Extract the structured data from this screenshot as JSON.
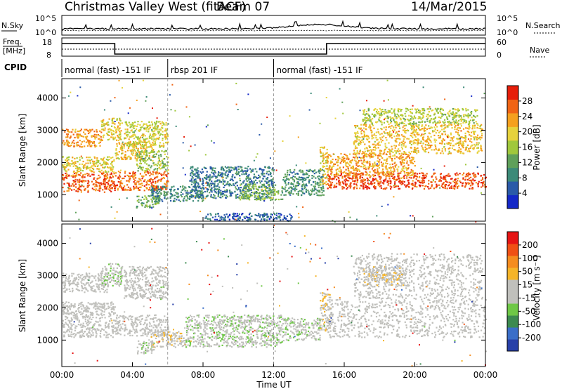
{
  "header": {
    "title": "Christmas Valley West (fitACF)",
    "beam": "Beam 07",
    "date": "14/Mar/2015"
  },
  "top_panel": {
    "left_label": "N.Sky",
    "right_label": "N.Search",
    "ytick_top": "10^5",
    "ytick_bottom": "10^0"
  },
  "freq_panel": {
    "left_label_1": "Freq.",
    "left_label_2": "[MHz]",
    "right_label": "Nave",
    "left_ticks": [
      "18",
      "8"
    ],
    "right_ticks": [
      "60",
      "0"
    ]
  },
  "cpid": {
    "label": "CPID",
    "segments": [
      {
        "start_hour": 0,
        "text": "normal (fast) -151 IF"
      },
      {
        "start_hour": 6,
        "text": "rbsp 201 IF"
      },
      {
        "start_hour": 12,
        "text": "normal (fast) -151 IF"
      }
    ]
  },
  "colors": {
    "power_scale": [
      "#1428c8",
      "#2a5aa8",
      "#3c8a78",
      "#5fa05a",
      "#a0c83c",
      "#e6d23c",
      "#f5a01e",
      "#f06414",
      "#e61e0a"
    ],
    "velocity_scale": [
      "#2840a8",
      "#3a6ec8",
      "#3c8a50",
      "#6ec846",
      "#c0c0bc",
      "#c0c0bc",
      "#f5b428",
      "#f58c1e",
      "#f05014",
      "#e61414"
    ]
  },
  "chart_data": [
    {
      "type": "heatmap",
      "title": "",
      "xlabel": "Time UT",
      "ylabel": "Slant Range [km]",
      "x_ticks": [
        "00:00",
        "04:00",
        "08:00",
        "12:00",
        "16:00",
        "20:00",
        "00:00"
      ],
      "x_hours": [
        0,
        4,
        8,
        12,
        16,
        20,
        24
      ],
      "y_ticks": [
        "4000",
        "3000",
        "2000",
        "1000"
      ],
      "y_values": [
        4000,
        3000,
        2000,
        1000
      ],
      "ylim": [
        180,
        4600
      ],
      "colorbar_label": "Power [dB]",
      "colorbar_ticks": [
        "28",
        "24",
        "20",
        "16",
        "12",
        "8",
        "4"
      ],
      "colorbar_range": [
        0,
        32
      ],
      "regions": [
        {
          "t0": 0,
          "t1": 3.0,
          "r0": 1100,
          "r1": 1700,
          "value": 27
        },
        {
          "t0": 0,
          "t1": 3.0,
          "r0": 1700,
          "r1": 2200,
          "value": 20
        },
        {
          "t0": 0,
          "t1": 2.2,
          "r0": 2500,
          "r1": 3050,
          "value": 24
        },
        {
          "t0": 2.2,
          "t1": 3.4,
          "r0": 2700,
          "r1": 3400,
          "value": 20
        },
        {
          "t0": 3.0,
          "t1": 6.0,
          "r0": 1150,
          "r1": 1750,
          "value": 26
        },
        {
          "t0": 3.0,
          "t1": 5.2,
          "r0": 2100,
          "r1": 2700,
          "value": 21
        },
        {
          "t0": 3.5,
          "t1": 6.0,
          "r0": 2500,
          "r1": 3300,
          "value": 18
        },
        {
          "t0": 4.2,
          "t1": 6.0,
          "r0": 1750,
          "r1": 2400,
          "value": 16
        },
        {
          "t0": 4.2,
          "t1": 5.5,
          "r0": 600,
          "r1": 1000,
          "value": 13
        },
        {
          "t0": 5.0,
          "t1": 8.0,
          "r0": 800,
          "r1": 1300,
          "value": 9
        },
        {
          "t0": 7.2,
          "t1": 12.0,
          "r0": 900,
          "r1": 1900,
          "value": 8
        },
        {
          "t0": 10.0,
          "t1": 12.5,
          "r0": 850,
          "r1": 1350,
          "value": 14
        },
        {
          "t0": 12.5,
          "t1": 14.8,
          "r0": 1000,
          "r1": 1800,
          "value": 10
        },
        {
          "t0": 14.6,
          "t1": 15.0,
          "r0": 1300,
          "r1": 2500,
          "value": 20
        },
        {
          "t0": 15.0,
          "t1": 24.0,
          "r0": 1200,
          "r1": 1700,
          "value": 28
        },
        {
          "t0": 15.0,
          "t1": 20.0,
          "r0": 1600,
          "r1": 2300,
          "value": 23
        },
        {
          "t0": 16.5,
          "t1": 23.8,
          "r0": 2300,
          "r1": 3200,
          "value": 21
        },
        {
          "t0": 17.0,
          "t1": 23.5,
          "r0": 3200,
          "r1": 3700,
          "value": 17
        },
        {
          "t0": 8.0,
          "t1": 13.0,
          "r0": 200,
          "r1": 450,
          "value": 6
        }
      ]
    },
    {
      "type": "heatmap",
      "title": "",
      "xlabel": "Time UT",
      "ylabel": "Slant Range [km]",
      "x_ticks": [
        "00:00",
        "04:00",
        "08:00",
        "12:00",
        "16:00",
        "20:00",
        "00:00"
      ],
      "x_hours": [
        0,
        4,
        8,
        12,
        16,
        20,
        24
      ],
      "y_ticks": [
        "4000",
        "3000",
        "2000",
        "1000"
      ],
      "y_values": [
        4000,
        3000,
        2000,
        1000
      ],
      "ylim": [
        180,
        4600
      ],
      "colorbar_label": "Velocity [m s⁻¹]",
      "colorbar_ticks": [
        "200",
        "100",
        "50",
        "15",
        "-15",
        "-50",
        "-100",
        "-200"
      ],
      "colorbar_range": [
        -250,
        250
      ],
      "regions": [
        {
          "t0": 0,
          "t1": 3.0,
          "r0": 1100,
          "r1": 2200,
          "value": 0
        },
        {
          "t0": 0,
          "t1": 2.6,
          "r0": 2500,
          "r1": 3100,
          "value": 0
        },
        {
          "t0": 2.2,
          "t1": 3.4,
          "r0": 2700,
          "r1": 3400,
          "value": -40
        },
        {
          "t0": 3.0,
          "t1": 6.0,
          "r0": 1150,
          "r1": 1800,
          "value": 0
        },
        {
          "t0": 3.5,
          "t1": 6.0,
          "r0": 2300,
          "r1": 3300,
          "value": 0
        },
        {
          "t0": 4.2,
          "t1": 5.2,
          "r0": 600,
          "r1": 1000,
          "value": -40
        },
        {
          "t0": 5.0,
          "t1": 7.0,
          "r0": 800,
          "r1": 1300,
          "value": 40
        },
        {
          "t0": 7.0,
          "t1": 12.5,
          "r0": 800,
          "r1": 1800,
          "value": -40
        },
        {
          "t0": 12.5,
          "t1": 14.6,
          "r0": 1000,
          "r1": 1700,
          "value": -40
        },
        {
          "t0": 14.6,
          "t1": 15.2,
          "r0": 1300,
          "r1": 2500,
          "value": 40
        },
        {
          "t0": 15.0,
          "t1": 24.0,
          "r0": 1100,
          "r1": 2300,
          "value": 0
        },
        {
          "t0": 16.5,
          "t1": 23.8,
          "r0": 2300,
          "r1": 3700,
          "value": 0
        },
        {
          "t0": 17.0,
          "t1": 19.5,
          "r0": 2700,
          "r1": 3300,
          "value": 40
        }
      ]
    }
  ]
}
